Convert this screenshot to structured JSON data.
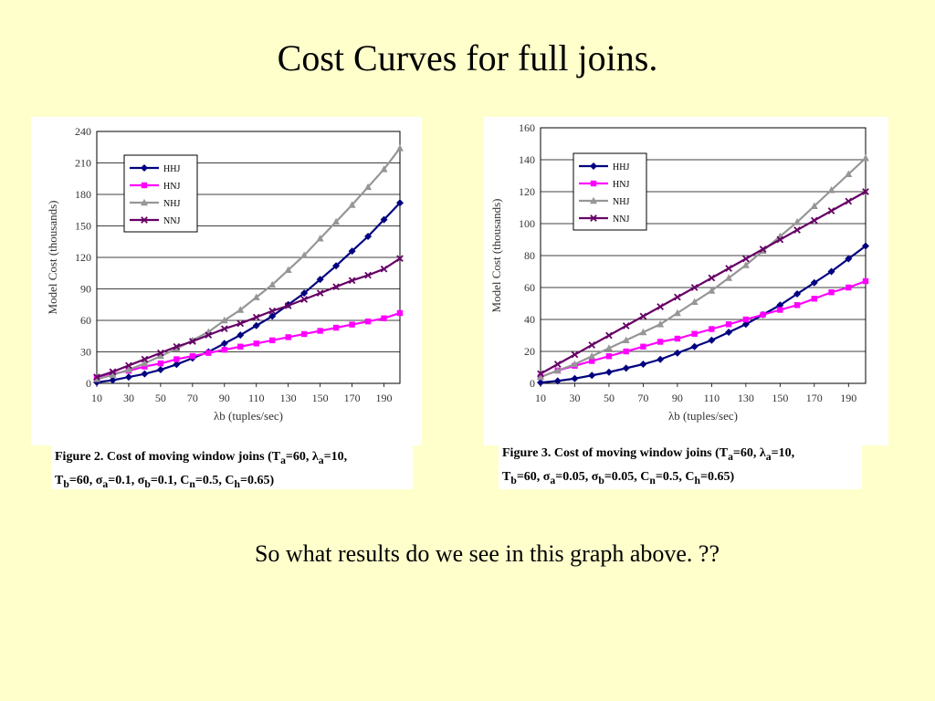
{
  "slide": {
    "title": "Cost Curves for full joins.",
    "question": "So what results do we see in this graph above. ??"
  },
  "colors": {
    "background": "#FFFFCC",
    "HHJ": "#000080",
    "HNJ": "#FF00FF",
    "NHJ": "#969696",
    "NNJ": "#660066"
  },
  "captions": {
    "left": {
      "fig_label": "Figure 2. Cost of moving window joins (T",
      "line1_parts": [
        "a",
        "=60, λ",
        "a",
        "=10,"
      ],
      "line2_parts": [
        "T",
        "b",
        "=60, σ",
        "a",
        "=0.1, σ",
        "b",
        "=0.1, C",
        "n",
        "=0.5, C",
        "h",
        "=0.65)"
      ]
    },
    "right": {
      "fig_label": "Figure 3. Cost of moving window joins (T",
      "line1_parts": [
        "a",
        "=60, λ",
        "a",
        "=10,"
      ],
      "line2_parts": [
        "T",
        "b",
        "=60, σ",
        "a",
        "=0.05, σ",
        "b",
        "=0.05, C",
        "n",
        "=0.5, C",
        "h",
        "=0.65)"
      ]
    }
  },
  "chart_data": [
    {
      "type": "line",
      "ylabel": "Model Cost (thousands)",
      "xlabel": "λb (tuples/sec)",
      "xlim": [
        10,
        200
      ],
      "ylim": [
        0,
        240
      ],
      "yticks": [
        0,
        30,
        60,
        90,
        120,
        150,
        180,
        210,
        240
      ],
      "xticks": [
        10,
        30,
        50,
        70,
        90,
        110,
        130,
        150,
        170,
        190
      ],
      "grid": "horizontal",
      "legend_position": "top-left",
      "x": [
        10,
        20,
        30,
        40,
        50,
        60,
        70,
        80,
        90,
        100,
        110,
        120,
        130,
        140,
        150,
        160,
        170,
        180,
        190,
        200
      ],
      "series": [
        {
          "name": "HHJ",
          "marker": "diamond",
          "values": [
            1,
            3,
            6,
            9,
            13,
            18,
            24,
            30,
            38,
            46,
            55,
            64,
            75,
            86,
            99,
            112,
            126,
            140,
            156,
            172
          ]
        },
        {
          "name": "HNJ",
          "marker": "square",
          "values": [
            5,
            9,
            12,
            16,
            19,
            23,
            26,
            29,
            32,
            35,
            38,
            41,
            44,
            47,
            50,
            53,
            56,
            59,
            62,
            67
          ]
        },
        {
          "name": "NHJ",
          "marker": "triangle",
          "values": [
            4,
            8,
            13,
            19,
            26,
            33,
            41,
            49,
            60,
            70,
            82,
            94,
            108,
            122,
            138,
            154,
            170,
            187,
            204,
            224
          ]
        },
        {
          "name": "NNJ",
          "marker": "x",
          "values": [
            6,
            11,
            17,
            23,
            29,
            35,
            40,
            46,
            52,
            57,
            63,
            69,
            74,
            80,
            86,
            92,
            98,
            103,
            109,
            119
          ]
        }
      ]
    },
    {
      "type": "line",
      "ylabel": "Model Cost (thousands)",
      "xlabel": "λb (tuples/sec)",
      "xlim": [
        10,
        200
      ],
      "ylim": [
        0,
        160
      ],
      "yticks": [
        0,
        20,
        40,
        60,
        80,
        100,
        120,
        140,
        160
      ],
      "xticks": [
        10,
        30,
        50,
        70,
        90,
        110,
        130,
        150,
        170,
        190
      ],
      "grid": "horizontal",
      "legend_position": "top-left",
      "x": [
        10,
        20,
        30,
        40,
        50,
        60,
        70,
        80,
        90,
        100,
        110,
        120,
        130,
        140,
        150,
        160,
        170,
        180,
        190,
        200
      ],
      "series": [
        {
          "name": "HHJ",
          "marker": "diamond",
          "values": [
            0.5,
            1.5,
            3,
            5,
            7,
            9.5,
            12,
            15,
            19,
            23,
            27,
            32,
            37,
            43,
            49,
            56,
            63,
            70,
            78,
            86
          ]
        },
        {
          "name": "HNJ",
          "marker": "square",
          "values": [
            4,
            8,
            11,
            14,
            17,
            20,
            23,
            26,
            28,
            31,
            34,
            37,
            40,
            43,
            46,
            49,
            53,
            57,
            60,
            64
          ]
        },
        {
          "name": "NHJ",
          "marker": "triangle",
          "values": [
            4,
            8,
            12,
            17,
            22,
            27,
            32,
            37,
            44,
            51,
            58,
            66,
            74,
            83,
            92,
            101,
            111,
            121,
            131,
            141
          ]
        },
        {
          "name": "NNJ",
          "marker": "x",
          "values": [
            6,
            12,
            18,
            24,
            30,
            36,
            42,
            48,
            54,
            60,
            66,
            72,
            78,
            84,
            90,
            96,
            102,
            108,
            114,
            120
          ]
        }
      ]
    }
  ]
}
